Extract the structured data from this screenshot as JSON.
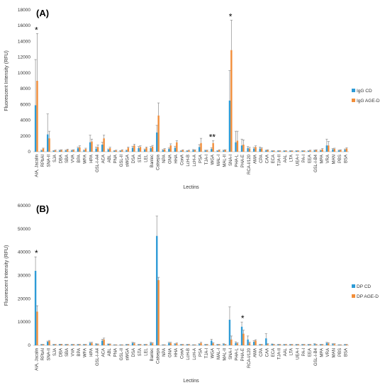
{
  "colors": {
    "series1": "#2e9bd6",
    "series2": "#f28e3a",
    "error": "#8c8c8c"
  },
  "chart_data": [
    {
      "type": "bar",
      "panel_label": "(A)",
      "ylabel": "Fluorescent Intensity (RFU)",
      "xlabel": "Lectins",
      "ylim": [
        0,
        18000
      ],
      "yticks": [
        "0",
        "2000",
        "4000",
        "6000",
        "8000",
        "10000",
        "12000",
        "14000",
        "16000",
        "18000"
      ],
      "legend_position": "right",
      "categories": [
        "AIA, Jacalin",
        "RPbAI",
        "SNA-II",
        "SJA",
        "DBA",
        "SBA",
        "VVA",
        "BPA",
        "WFA",
        "HPA",
        "GSL-I-A4",
        "ACA",
        "ABL",
        "PNA",
        "GSL-II",
        "sWGA",
        "DSA",
        "STA",
        "LEL",
        "Banlec",
        "Calsepa",
        "NPA",
        "GNA",
        "HHA",
        "ConA",
        "LcH-B",
        "LcH-A",
        "PSA",
        "TJA-I",
        "WGA",
        "MAL-I",
        "MAL-II",
        "SNA-I",
        "PHA-L",
        "PHA-E",
        "RCA-I/120",
        "AMA",
        "CPA",
        "CAA",
        "ECA",
        "TJA-II",
        "AAL",
        "LTA",
        "UEA-I",
        "PA-I",
        "EEA",
        "GSL-I-B4",
        "MPA",
        "VRA",
        "MAN",
        "PBS",
        "BSA"
      ],
      "series": [
        {
          "name": "IgG CD",
          "values": [
            5900,
            150,
            2200,
            100,
            150,
            150,
            150,
            450,
            150,
            1200,
            400,
            900,
            250,
            100,
            100,
            150,
            500,
            450,
            250,
            450,
            2450,
            200,
            350,
            500,
            100,
            100,
            200,
            600,
            150,
            350,
            100,
            150,
            6500,
            1200,
            800,
            450,
            400,
            400,
            150,
            100,
            100,
            100,
            100,
            100,
            100,
            100,
            150,
            150,
            800,
            300,
            150,
            250
          ],
          "errors": [
            5800,
            50,
            2600,
            50,
            50,
            50,
            50,
            150,
            50,
            900,
            200,
            300,
            100,
            50,
            50,
            50,
            200,
            200,
            100,
            200,
            900,
            80,
            120,
            200,
            30,
            30,
            80,
            300,
            50,
            150,
            30,
            50,
            3800,
            1400,
            800,
            200,
            150,
            200,
            50,
            30,
            30,
            30,
            30,
            30,
            30,
            30,
            50,
            50,
            800,
            100,
            50,
            100
          ]
        },
        {
          "name": "IgG AGE-D",
          "values": [
            9000,
            400,
            1700,
            150,
            200,
            250,
            200,
            550,
            350,
            1300,
            600,
            1700,
            450,
            150,
            200,
            500,
            800,
            600,
            500,
            650,
            4600,
            300,
            800,
            1200,
            200,
            150,
            200,
            1100,
            150,
            1100,
            200,
            200,
            12900,
            1400,
            900,
            400,
            600,
            400,
            200,
            100,
            100,
            100,
            100,
            100,
            100,
            150,
            200,
            300,
            800,
            350,
            200,
            400
          ],
          "errors": [
            6000,
            60,
            900,
            60,
            60,
            80,
            60,
            200,
            100,
            300,
            250,
            400,
            120,
            50,
            60,
            100,
            150,
            150,
            100,
            150,
            1600,
            100,
            200,
            200,
            50,
            50,
            50,
            600,
            50,
            300,
            50,
            60,
            3800,
            1200,
            600,
            150,
            150,
            100,
            50,
            30,
            30,
            30,
            30,
            30,
            30,
            50,
            50,
            100,
            500,
            100,
            50,
            100
          ]
        }
      ],
      "annotations": [
        {
          "text": "*",
          "category": "AIA, Jacalin"
        },
        {
          "text": "**",
          "category": "WGA"
        },
        {
          "text": "*",
          "category": "SNA-I"
        }
      ]
    },
    {
      "type": "bar",
      "panel_label": "(B)",
      "ylabel": "Fluorescent Intensity (RFU)",
      "xlabel": "Lectins",
      "ylim": [
        0,
        60000
      ],
      "yticks": [
        "0",
        "10000",
        "20000",
        "30000",
        "40000",
        "50000",
        "60000"
      ],
      "legend_position": "right",
      "categories": [
        "AIA, Jacalin",
        "RPbAI",
        "SNA-II",
        "SJA",
        "DBA",
        "SBA",
        "VVA",
        "BPA",
        "WFA",
        "HPA",
        "GSL-I-A4",
        "ACA",
        "ABL",
        "PNA",
        "GSL-II",
        "sWGA",
        "DSA",
        "STA",
        "LEL",
        "Banlec",
        "Calsepa",
        "NPA",
        "GNA",
        "HHA",
        "ConA",
        "LcH-B",
        "LcH-A",
        "PSA",
        "TJA-I",
        "WGA",
        "MAL-I",
        "MAL-II",
        "SNA-I",
        "PHA-L",
        "PHA-E",
        "RCA-I/120",
        "AMA",
        "CPA",
        "CAA",
        "ECA",
        "TJA-II",
        "AAL",
        "LTA",
        "UEA-I",
        "PA-I",
        "EEA",
        "GSL-I-B4",
        "MPA",
        "VRA",
        "MAN",
        "PBS",
        "BSA"
      ],
      "series": [
        {
          "name": "DP CD",
          "values": [
            32000,
            300,
            1500,
            300,
            400,
            300,
            300,
            300,
            300,
            1000,
            500,
            2000,
            500,
            200,
            200,
            300,
            1000,
            300,
            300,
            1000,
            47000,
            200,
            1000,
            500,
            300,
            300,
            200,
            500,
            300,
            2000,
            300,
            500,
            11000,
            1000,
            8000,
            2500,
            1500,
            300,
            3000,
            500,
            300,
            300,
            300,
            300,
            300,
            300,
            500,
            300,
            1000,
            500,
            200,
            300
          ],
          "errors": [
            6000,
            100,
            300,
            100,
            100,
            100,
            100,
            100,
            100,
            300,
            200,
            600,
            100,
            50,
            50,
            100,
            300,
            100,
            100,
            300,
            8500,
            50,
            300,
            200,
            100,
            100,
            50,
            200,
            100,
            600,
            100,
            200,
            5500,
            500,
            2000,
            1500,
            500,
            100,
            2000,
            100,
            100,
            100,
            100,
            100,
            100,
            100,
            200,
            100,
            300,
            200,
            50,
            100
          ]
        },
        {
          "name": "DP AGE-D",
          "values": [
            14500,
            300,
            1800,
            300,
            400,
            300,
            300,
            300,
            300,
            1000,
            400,
            2500,
            500,
            200,
            200,
            300,
            800,
            300,
            300,
            800,
            28000,
            200,
            1000,
            800,
            300,
            300,
            200,
            1000,
            300,
            800,
            300,
            300,
            2500,
            800,
            5000,
            1000,
            2000,
            300,
            500,
            300,
            300,
            300,
            300,
            300,
            300,
            300,
            300,
            300,
            800,
            500,
            200,
            300
          ],
          "errors": [
            2500,
            100,
            300,
            100,
            100,
            100,
            100,
            100,
            100,
            300,
            200,
            600,
            100,
            50,
            50,
            100,
            300,
            100,
            100,
            300,
            1200,
            50,
            300,
            200,
            100,
            100,
            50,
            300,
            100,
            300,
            100,
            100,
            1500,
            300,
            1500,
            400,
            400,
            100,
            200,
            100,
            100,
            100,
            100,
            100,
            100,
            100,
            100,
            100,
            300,
            200,
            50,
            100
          ]
        }
      ],
      "annotations": [
        {
          "text": "*",
          "category": "AIA, Jacalin"
        },
        {
          "text": "*",
          "category": "PHA-E"
        }
      ]
    }
  ]
}
